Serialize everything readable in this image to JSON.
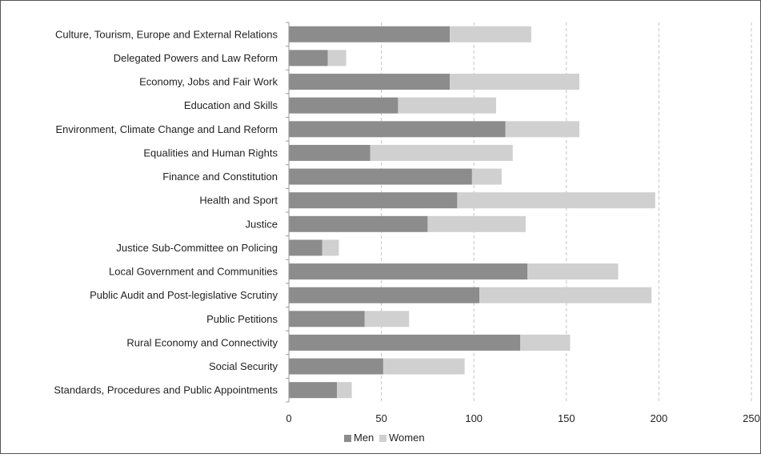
{
  "chart_data": {
    "type": "bar",
    "orientation": "horizontal",
    "stacked": true,
    "title": "",
    "xlabel": "",
    "ylabel": "",
    "xlim": [
      0,
      250
    ],
    "x_ticks": [
      "0",
      "50",
      "100",
      "150",
      "200",
      "250"
    ],
    "grid": "vertical dashed",
    "legend_position": "bottom-center",
    "categories": [
      "Culture, Tourism, Europe and External Relations",
      "Delegated Powers and Law Reform",
      "Economy, Jobs and Fair Work",
      "Education and Skills",
      "Environment, Climate Change and Land Reform",
      "Equalities and Human Rights",
      "Finance and Constitution",
      "Health and Sport",
      "Justice",
      "Justice Sub-Committee on Policing",
      "Local Government and Communities",
      "Public Audit and Post-legislative Scrutiny",
      "Public Petitions",
      "Rural Economy and Connectivity",
      "Social Security",
      "Standards, Procedures and Public Appointments"
    ],
    "series": [
      {
        "name": "Men",
        "color": "#8c8c8c",
        "values": [
          87,
          21,
          87,
          59,
          117,
          44,
          99,
          91,
          75,
          18,
          129,
          103,
          41,
          125,
          51,
          26
        ]
      },
      {
        "name": "Women",
        "color": "#d0d0d0",
        "values": [
          44,
          10,
          70,
          53,
          40,
          77,
          16,
          107,
          53,
          9,
          49,
          93,
          24,
          27,
          44,
          8
        ]
      }
    ]
  }
}
